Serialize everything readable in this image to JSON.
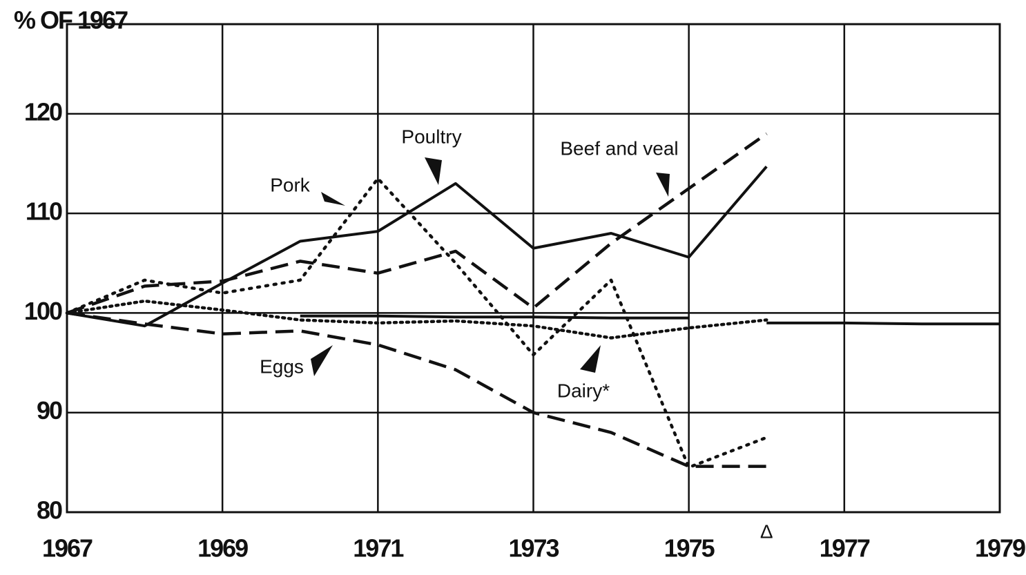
{
  "chart_data": {
    "type": "line",
    "y_label": "% OF 1967",
    "x": [
      1967,
      1968,
      1969,
      1970,
      1971,
      1972,
      1973,
      1974,
      1975,
      1976,
      1977,
      1978,
      1979
    ],
    "xlim": [
      1967,
      1979
    ],
    "xticks": [
      1967,
      1969,
      1971,
      1973,
      1975,
      1977,
      1979
    ],
    "ylim": [
      80,
      129
    ],
    "yticks": [
      80,
      90,
      100,
      110,
      120
    ],
    "grid": true,
    "annotations": [
      "Δ"
    ],
    "series": [
      {
        "name": "Poultry",
        "color": "#111111",
        "dash": "solid",
        "values": [
          100,
          98.7,
          103,
          107.2,
          108.2,
          113,
          106.5,
          108,
          105.6,
          114.7,
          null,
          null,
          null
        ]
      },
      {
        "name": "Beef and veal",
        "color": "#111111",
        "dash": "dashed",
        "values": [
          100,
          102.7,
          103.2,
          105.2,
          104,
          106.2,
          100.5,
          107,
          112.5,
          118,
          null,
          null,
          null
        ]
      },
      {
        "name": "Pork",
        "color": "#111111",
        "dash": "dotted",
        "values": [
          100,
          103.3,
          102,
          103.3,
          113.5,
          105,
          95.8,
          103.3,
          84.5,
          87.5,
          null,
          null,
          null
        ]
      },
      {
        "name": "Dairy*",
        "color": "#111111",
        "dash": "fine-dotted",
        "values": [
          100,
          101.2,
          100.3,
          99.3,
          99,
          99.2,
          98.7,
          97.5,
          98.5,
          99.3,
          null,
          null,
          null
        ]
      },
      {
        "name": "Eggs",
        "color": "#111111",
        "dash": "dashed",
        "values": [
          100,
          98.9,
          97.9,
          98.2,
          96.8,
          94.3,
          90,
          88,
          84.6,
          84.6,
          null,
          null,
          null
        ]
      },
      {
        "color": "#111111",
        "dash": "solid",
        "values": [
          null,
          null,
          null,
          99.7,
          99.7,
          99.6,
          99.6,
          99.5,
          99.5,
          null,
          null,
          null,
          null
        ]
      },
      {
        "color": "#111111",
        "dash": "solid",
        "values": [
          null,
          null,
          null,
          null,
          null,
          null,
          null,
          null,
          null,
          99,
          99,
          98.9,
          98.9
        ]
      }
    ]
  }
}
